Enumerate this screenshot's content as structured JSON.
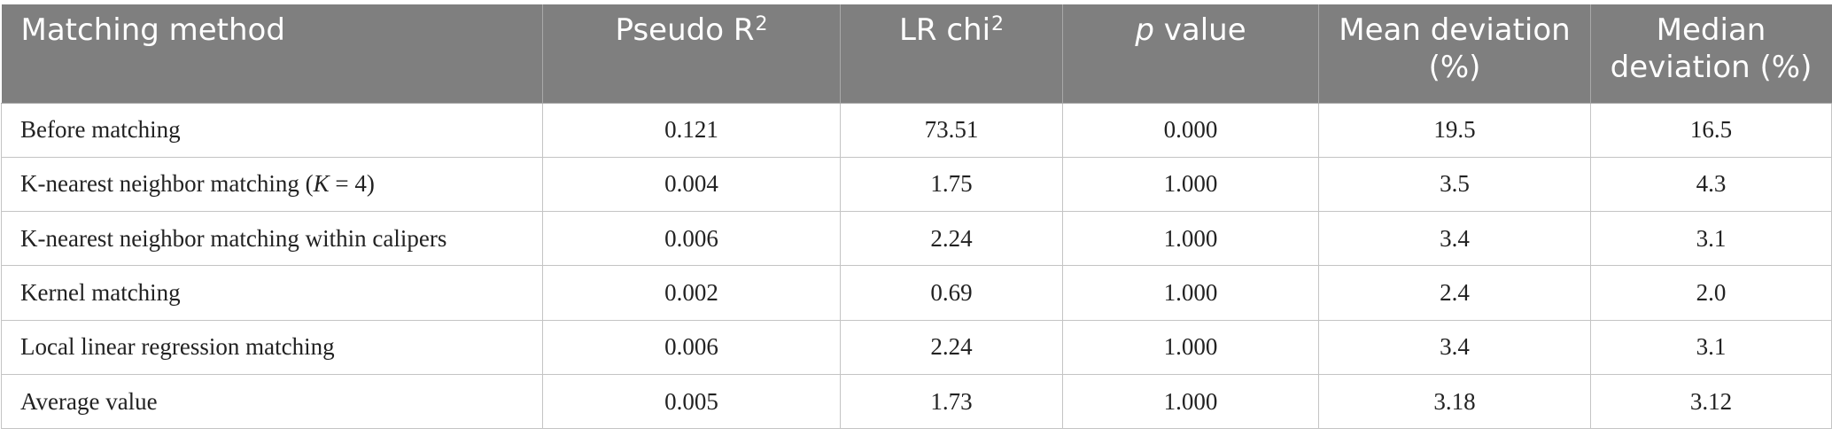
{
  "table": {
    "header": {
      "method": "Matching method",
      "pseudo_r2": {
        "text": "Pseudo R",
        "sup": "2"
      },
      "lr_chi2": {
        "text": "LR chi",
        "sup": "2"
      },
      "p_value": {
        "italic": "p",
        "text": " value"
      },
      "mean_dev": "Mean deviation (%)",
      "median_dev": "Median deviation (%)"
    },
    "rows": [
      {
        "method": "Before matching",
        "pseudo_r2": "0.121",
        "lr_chi2": "73.51",
        "p_value": "0.000",
        "mean_dev": "19.5",
        "median_dev": "16.5"
      },
      {
        "method_prefix": "K-nearest neighbor matching (",
        "method_italic": "K",
        "method_suffix": " = 4)",
        "pseudo_r2": "0.004",
        "lr_chi2": "1.75",
        "p_value": "1.000",
        "mean_dev": "3.5",
        "median_dev": "4.3"
      },
      {
        "method": "K-nearest neighbor matching within calipers",
        "pseudo_r2": "0.006",
        "lr_chi2": "2.24",
        "p_value": "1.000",
        "mean_dev": "3.4",
        "median_dev": "3.1"
      },
      {
        "method": "Kernel matching",
        "pseudo_r2": "0.002",
        "lr_chi2": "0.69",
        "p_value": "1.000",
        "mean_dev": "2.4",
        "median_dev": "2.0"
      },
      {
        "method": "Local linear regression matching",
        "pseudo_r2": "0.006",
        "lr_chi2": "2.24",
        "p_value": "1.000",
        "mean_dev": "3.4",
        "median_dev": "3.1"
      },
      {
        "method": "Average value",
        "pseudo_r2": "0.005",
        "lr_chi2": "1.73",
        "p_value": "1.000",
        "mean_dev": "3.18",
        "median_dev": "3.12"
      }
    ]
  }
}
